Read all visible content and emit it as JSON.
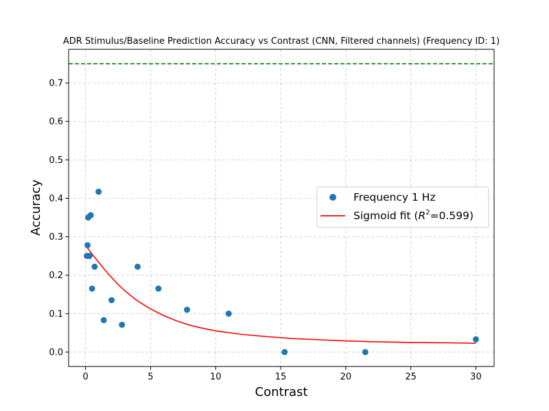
{
  "chart_data": {
    "type": "scatter",
    "title": "ADR Stimulus/Baseline Prediction Accuracy vs Contrast (CNN, Filtered channels) (Frequency ID: 1)",
    "xlabel": "Contrast",
    "ylabel": "Accuracy",
    "xlim": [
      -1.3,
      31.4
    ],
    "ylim": [
      -0.0375,
      0.7875
    ],
    "xticks": [
      0,
      5,
      10,
      15,
      20,
      25,
      30
    ],
    "yticks": [
      0.0,
      0.1,
      0.2,
      0.3,
      0.4,
      0.5,
      0.6,
      0.7
    ],
    "ytick_labels": [
      "0.0",
      "0.1",
      "0.2",
      "0.3",
      "0.4",
      "0.5",
      "0.6",
      "0.7"
    ],
    "grid": true,
    "legend_placement": "center-right",
    "colors": {
      "points": "#1f77b4",
      "fit": "#ff0000",
      "reference": "#008000"
    },
    "reference_line": {
      "y": 0.75,
      "style": "dashed"
    },
    "series": [
      {
        "name": "Frequency 1 Hz",
        "kind": "scatter",
        "points": [
          [
            0.1,
            0.25
          ],
          [
            0.15,
            0.278
          ],
          [
            0.2,
            0.35
          ],
          [
            0.3,
            0.25
          ],
          [
            0.4,
            0.356
          ],
          [
            0.5,
            0.165
          ],
          [
            0.7,
            0.222
          ],
          [
            1.0,
            0.417
          ],
          [
            1.4,
            0.083
          ],
          [
            2.0,
            0.135
          ],
          [
            2.8,
            0.071
          ],
          [
            4.0,
            0.222
          ],
          [
            5.6,
            0.165
          ],
          [
            7.8,
            0.11
          ],
          [
            11.0,
            0.1
          ],
          [
            15.3,
            0.0
          ],
          [
            21.5,
            0.0
          ],
          [
            30.0,
            0.033
          ]
        ]
      },
      {
        "name": "Sigmoid fit (R²=0.599)",
        "name_parts": {
          "prefix": "Sigmoid fit (",
          "var": "R",
          "sup": "2",
          "suffix": "=0.599)"
        },
        "kind": "line",
        "points": [
          [
            0.1,
            0.273
          ],
          [
            0.5,
            0.255
          ],
          [
            1,
            0.234
          ],
          [
            1.5,
            0.213
          ],
          [
            2,
            0.194
          ],
          [
            2.5,
            0.176
          ],
          [
            3,
            0.16
          ],
          [
            3.5,
            0.146
          ],
          [
            4,
            0.133
          ],
          [
            5,
            0.112
          ],
          [
            6,
            0.095
          ],
          [
            7,
            0.081
          ],
          [
            8,
            0.07
          ],
          [
            9,
            0.062
          ],
          [
            10,
            0.055
          ],
          [
            12,
            0.046
          ],
          [
            14,
            0.04
          ],
          [
            16,
            0.035
          ],
          [
            18,
            0.032
          ],
          [
            20,
            0.029
          ],
          [
            22,
            0.027
          ],
          [
            25,
            0.025
          ],
          [
            28,
            0.024
          ],
          [
            30,
            0.023
          ]
        ]
      }
    ]
  }
}
